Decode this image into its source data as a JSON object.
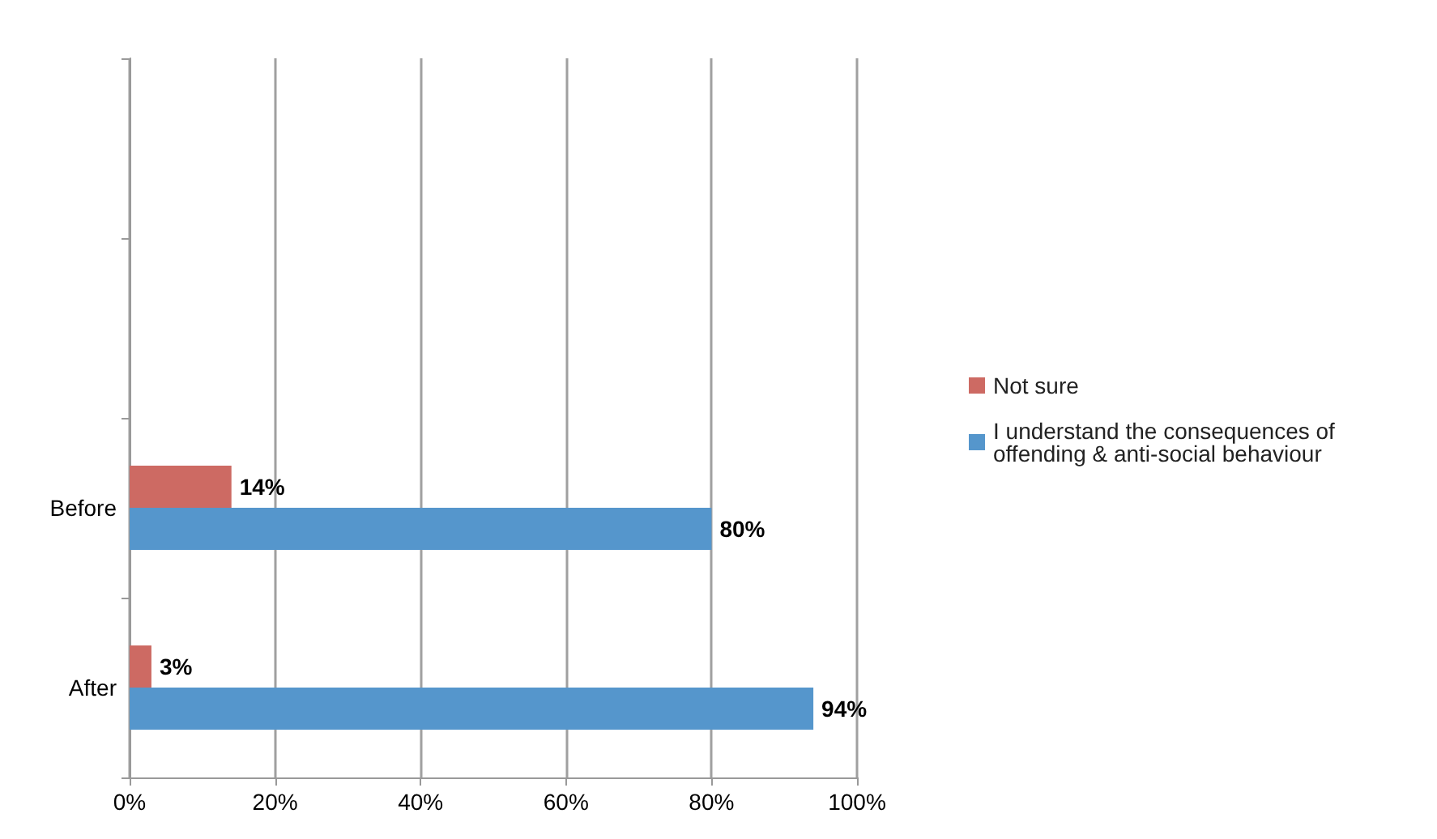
{
  "chart_data": {
    "type": "bar",
    "orientation": "horizontal",
    "categories": [
      null,
      null,
      "Before",
      "After"
    ],
    "series": [
      {
        "name": "Not sure",
        "color": "#cd6a63",
        "values": [
          null,
          null,
          14,
          3
        ],
        "value_labels": [
          null,
          null,
          "14%",
          "3%"
        ]
      },
      {
        "name": "I understand the consequences of offending & anti-social behaviour",
        "color": "#5596cc",
        "values": [
          null,
          null,
          80,
          94
        ],
        "value_labels": [
          null,
          null,
          "80%",
          "94%"
        ]
      }
    ],
    "xlim": [
      0,
      100
    ],
    "xticks": [
      {
        "value": 0,
        "label": "0%"
      },
      {
        "value": 20,
        "label": "20%"
      },
      {
        "value": 40,
        "label": "40%"
      },
      {
        "value": 60,
        "label": "60%"
      },
      {
        "value": 80,
        "label": "80%"
      },
      {
        "value": 100,
        "label": "100%"
      }
    ],
    "grid": "x",
    "legend": "right"
  }
}
